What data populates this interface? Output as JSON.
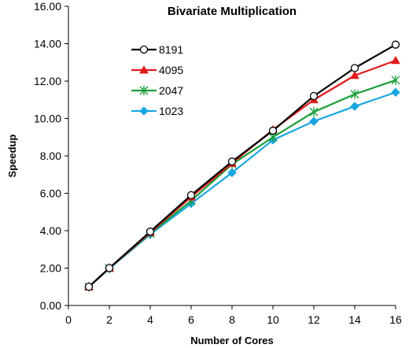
{
  "chart_data": {
    "type": "line",
    "title": "Bivariate Multiplication",
    "xlabel": "Number of Cores",
    "ylabel": "Speedup",
    "xlim": [
      0,
      16
    ],
    "ylim": [
      0,
      16
    ],
    "x_ticks": [
      "0",
      "2",
      "4",
      "6",
      "8",
      "10",
      "12",
      "14",
      "16"
    ],
    "y_ticks": [
      "0.00",
      "2.00",
      "4.00",
      "6.00",
      "8.00",
      "10.00",
      "12.00",
      "14.00",
      "16.00"
    ],
    "grid": false,
    "legend_position": "left-middle",
    "x": [
      1,
      2,
      4,
      6,
      8,
      10,
      12,
      14,
      16
    ],
    "series": [
      {
        "name": "8191",
        "color": "#000000",
        "marker": "circle-open",
        "values": [
          1.0,
          2.0,
          3.95,
          5.9,
          7.7,
          9.35,
          11.2,
          12.7,
          13.95
        ]
      },
      {
        "name": "4095",
        "color": "#e31a1c",
        "marker": "triangle",
        "values": [
          1.0,
          2.0,
          3.9,
          5.8,
          7.6,
          9.4,
          11.0,
          12.3,
          13.1
        ]
      },
      {
        "name": "2047",
        "color": "#1a9e3a",
        "marker": "asterisk",
        "values": [
          1.0,
          2.0,
          3.85,
          5.6,
          7.55,
          9.0,
          10.35,
          11.3,
          12.05
        ]
      },
      {
        "name": "1023",
        "color": "#1aa7e0",
        "marker": "diamond",
        "values": [
          1.0,
          1.97,
          3.8,
          5.45,
          7.1,
          8.85,
          9.85,
          10.65,
          11.4
        ]
      }
    ]
  }
}
